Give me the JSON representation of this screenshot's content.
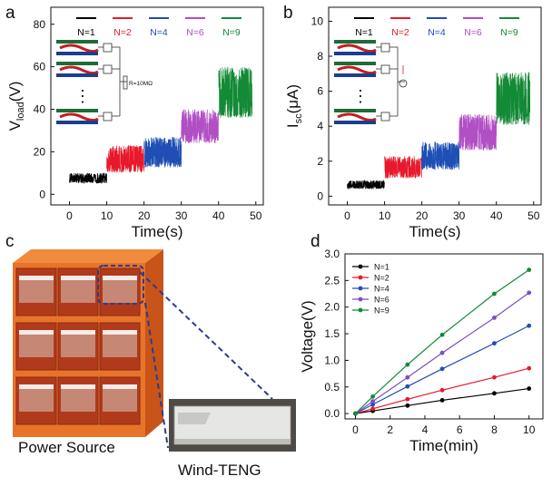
{
  "panels": {
    "a": "a",
    "b": "b",
    "c": "c",
    "d": "d"
  },
  "panel_c": {
    "power_source_label": "Power Source",
    "wind_teng_label": "Wind-TENG"
  },
  "schematic": {
    "resistor_label": "R=10MΩ",
    "dots": "⋮"
  },
  "chart_data": [
    {
      "id": "a",
      "type": "line",
      "xlabel": "Time(s)",
      "ylabel_main": "V",
      "ylabel_sub": "load",
      "ylabel_unit": "(V)",
      "xlim": [
        -5,
        52
      ],
      "ylim": [
        -5,
        88
      ],
      "xticks": [
        0,
        10,
        20,
        30,
        40,
        50
      ],
      "yticks": [
        0,
        20,
        40,
        60,
        80
      ],
      "series": [
        {
          "name": "N=1",
          "color": "#000000",
          "x_range": [
            0,
            10
          ],
          "base": 7,
          "amplitude": 3
        },
        {
          "name": "N=2",
          "color": "#e8192c",
          "x_range": [
            10,
            20
          ],
          "base": 15,
          "amplitude": 8
        },
        {
          "name": "N=4",
          "color": "#1f4fb5",
          "x_range": [
            20,
            30
          ],
          "base": 18,
          "amplitude": 9
        },
        {
          "name": "N=6",
          "color": "#b14fc5",
          "x_range": [
            30,
            40
          ],
          "base": 30,
          "amplitude": 10
        },
        {
          "name": "N=9",
          "color": "#138a36",
          "x_range": [
            40,
            49
          ],
          "base": 45,
          "amplitude": 15
        }
      ]
    },
    {
      "id": "b",
      "type": "line",
      "xlabel": "Time(s)",
      "ylabel_main": "I",
      "ylabel_sub": "sc",
      "ylabel_unit": "(μA)",
      "xlim": [
        -5,
        52
      ],
      "ylim": [
        -0.5,
        10.8
      ],
      "xticks": [
        0,
        10,
        20,
        30,
        40,
        50
      ],
      "yticks": [
        0,
        2,
        4,
        6,
        8,
        10
      ],
      "series": [
        {
          "name": "N=1",
          "color": "#000000",
          "x_range": [
            0,
            10
          ],
          "base": 0.6,
          "amplitude": 0.3
        },
        {
          "name": "N=2",
          "color": "#e8192c",
          "x_range": [
            10,
            20
          ],
          "base": 1.5,
          "amplitude": 0.8
        },
        {
          "name": "N=4",
          "color": "#1f4fb5",
          "x_range": [
            20,
            30
          ],
          "base": 2.1,
          "amplitude": 1.0
        },
        {
          "name": "N=6",
          "color": "#b14fc5",
          "x_range": [
            30,
            40
          ],
          "base": 3.4,
          "amplitude": 1.3
        },
        {
          "name": "N=9",
          "color": "#138a36",
          "x_range": [
            40,
            49
          ],
          "base": 5.2,
          "amplitude": 1.9
        }
      ]
    },
    {
      "id": "d",
      "type": "line",
      "xlabel": "Time(min)",
      "ylabel": "Voltage(V)",
      "xlim": [
        -0.6,
        10.8
      ],
      "ylim": [
        -0.1,
        3.0
      ],
      "xticks": [
        0,
        2,
        4,
        6,
        8,
        10
      ],
      "yticks": [
        0.0,
        0.5,
        1.0,
        1.5,
        2.0,
        2.5,
        3.0
      ],
      "ytick_labels": [
        "0.0",
        "0.5",
        "1.0",
        "1.5",
        "2.0",
        "2.5",
        "3.0"
      ],
      "x": [
        0,
        1,
        3,
        5,
        8,
        10
      ],
      "series": [
        {
          "name": "N=1",
          "color": "#000000",
          "values": [
            0,
            0.05,
            0.15,
            0.25,
            0.38,
            0.47
          ]
        },
        {
          "name": "N=2",
          "color": "#e8192c",
          "values": [
            0,
            0.09,
            0.27,
            0.44,
            0.68,
            0.85
          ]
        },
        {
          "name": "N=4",
          "color": "#1f4fb5",
          "values": [
            0,
            0.17,
            0.51,
            0.84,
            1.32,
            1.65
          ]
        },
        {
          "name": "N=6",
          "color": "#7a4fc2",
          "values": [
            0,
            0.23,
            0.68,
            1.14,
            1.8,
            2.27
          ]
        },
        {
          "name": "N=9",
          "color": "#138a36",
          "values": [
            0,
            0.32,
            0.92,
            1.48,
            2.25,
            2.7
          ]
        }
      ],
      "legend_position": "top-left"
    }
  ]
}
